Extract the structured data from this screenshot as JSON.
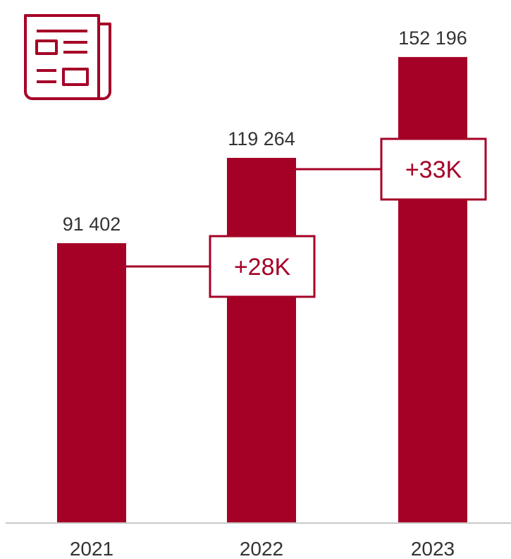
{
  "chart_data": {
    "type": "bar",
    "categories": [
      "2021",
      "2022",
      "2023"
    ],
    "values": [
      91402,
      119264,
      152196
    ],
    "value_labels": [
      "91 402",
      "119 264",
      "152 196"
    ],
    "ylim": [
      0,
      160000
    ],
    "grid": false,
    "annotations": [
      {
        "from": "2021",
        "to": "2022",
        "text": "+28K"
      },
      {
        "from": "2022",
        "to": "2023",
        "text": "+33K"
      }
    ],
    "colors": {
      "bar": "#a50026",
      "axis": "#c8c8c8",
      "text": "#333333"
    },
    "icon": "newspaper-icon"
  }
}
